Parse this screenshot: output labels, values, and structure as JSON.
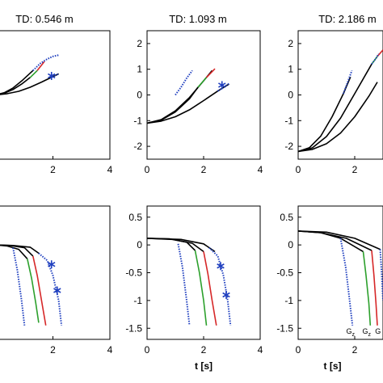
{
  "chart_data": [
    {
      "id": "top-1",
      "type": "line",
      "title": "TD: 0.546 m",
      "xlim": [
        0,
        4
      ],
      "ylim": [
        -2.5,
        2.5
      ],
      "xticks": [
        "2",
        "4"
      ],
      "yticks": [],
      "series": [
        {
          "color": "#000000",
          "style": "solid",
          "x": [
            0,
            0.4,
            0.8,
            1.2,
            1.6,
            2.2
          ],
          "y": [
            0,
            0.05,
            0.14,
            0.3,
            0.5,
            0.82
          ]
        },
        {
          "color": "#000000",
          "style": "solid",
          "x": [
            0,
            0.3,
            0.6,
            0.9,
            1.2
          ],
          "y": [
            0,
            0.07,
            0.21,
            0.42,
            0.68
          ]
        },
        {
          "color": "#000000",
          "style": "solid",
          "x": [
            0,
            0.3,
            0.6,
            0.9,
            1.3
          ],
          "y": [
            0,
            0.09,
            0.27,
            0.54,
            0.95
          ]
        },
        {
          "color": "#2ca02c",
          "style": "solid",
          "x": [
            1.2,
            1.45
          ],
          "y": [
            0.68,
            0.95
          ]
        },
        {
          "color": "#d62728",
          "style": "solid",
          "x": [
            1.45,
            1.7
          ],
          "y": [
            0.95,
            1.3
          ]
        },
        {
          "color": "#1f3fbf",
          "style": "dotted",
          "x": [
            1.3,
            1.55,
            1.8,
            2.0,
            2.2
          ],
          "y": [
            0.95,
            1.22,
            1.4,
            1.5,
            1.55
          ]
        },
        {
          "color": "#1f3fbf",
          "style": "dotted",
          "x": [
            1.9,
            2.0,
            2.2
          ],
          "y": [
            0.68,
            0.72,
            0.82
          ]
        }
      ],
      "markers": [
        {
          "x": 1.95,
          "y": 0.74
        }
      ]
    },
    {
      "id": "top-2",
      "type": "line",
      "title": "TD: 1.093 m",
      "xlim": [
        0,
        4
      ],
      "ylim": [
        -2.5,
        2.5
      ],
      "xticks": [
        "0",
        "2",
        "4"
      ],
      "yticks": [
        "-2",
        "-1",
        "0",
        "1",
        "2"
      ],
      "series": [
        {
          "color": "#000000",
          "style": "solid",
          "x": [
            0,
            0.5,
            1.0,
            1.5,
            2.0,
            2.5,
            2.9
          ],
          "y": [
            -1.1,
            -1.02,
            -0.85,
            -0.58,
            -0.22,
            0.15,
            0.42
          ]
        },
        {
          "color": "#000000",
          "style": "solid",
          "x": [
            0,
            0.5,
            1.0,
            1.5,
            1.8
          ],
          "y": [
            -1.1,
            -0.98,
            -0.66,
            -0.15,
            0.3
          ]
        },
        {
          "color": "#000000",
          "style": "solid",
          "x": [
            0,
            0.5,
            1.0,
            1.5,
            2.0,
            2.3
          ],
          "y": [
            -1.1,
            -0.96,
            -0.62,
            -0.1,
            0.55,
            0.95
          ]
        },
        {
          "color": "#2ca02c",
          "style": "solid",
          "x": [
            1.8,
            2.1
          ],
          "y": [
            0.3,
            0.68
          ]
        },
        {
          "color": "#d62728",
          "style": "solid",
          "x": [
            2.1,
            2.4
          ],
          "y": [
            0.68,
            1.02
          ]
        },
        {
          "color": "#1f3fbf",
          "style": "dotted",
          "x": [
            1.0,
            1.2,
            1.4,
            1.6
          ],
          "y": [
            0.0,
            0.3,
            0.65,
            0.95
          ]
        },
        {
          "color": "#1f3fbf",
          "style": "dotted",
          "x": [
            2.5,
            2.7,
            2.9
          ],
          "y": [
            0.15,
            0.3,
            0.44
          ]
        }
      ],
      "markers": [
        {
          "x": 2.65,
          "y": 0.38
        }
      ]
    },
    {
      "id": "top-3",
      "type": "line",
      "title": "TD: 2.186 m",
      "xlim": [
        0,
        3
      ],
      "ylim": [
        -2.5,
        2.5
      ],
      "xticks": [
        "0",
        "2"
      ],
      "yticks": [
        "-2",
        "-1",
        "0",
        "1",
        "2"
      ],
      "series": [
        {
          "color": "#000000",
          "style": "solid",
          "x": [
            0,
            0.5,
            1.0,
            1.5,
            2.0,
            2.5,
            2.8
          ],
          "y": [
            -2.2,
            -2.12,
            -1.9,
            -1.48,
            -0.85,
            -0.05,
            0.5
          ]
        },
        {
          "color": "#000000",
          "style": "solid",
          "x": [
            0,
            0.4,
            0.8,
            1.2,
            1.6,
            1.85
          ],
          "y": [
            -2.2,
            -2.05,
            -1.6,
            -0.85,
            0.05,
            0.7
          ]
        },
        {
          "color": "#000000",
          "style": "solid",
          "x": [
            0,
            0.5,
            1.0,
            1.5,
            2.0,
            2.6
          ],
          "y": [
            -2.2,
            -2.06,
            -1.62,
            -0.9,
            0.05,
            1.2
          ]
        },
        {
          "color": "#2ca02c",
          "style": "solid",
          "x": [
            2.6,
            2.8
          ],
          "y": [
            1.2,
            1.5
          ]
        },
        {
          "color": "#d62728",
          "style": "solid",
          "x": [
            2.8,
            3.0
          ],
          "y": [
            1.5,
            1.75
          ]
        },
        {
          "color": "#1f3fbf",
          "style": "dotted",
          "x": [
            1.6,
            1.75,
            1.9
          ],
          "y": [
            0.05,
            0.5,
            0.95
          ]
        },
        {
          "color": "#1f3fbf",
          "style": "dotted",
          "x": [
            2.6,
            2.75,
            2.85
          ],
          "y": [
            1.2,
            1.42,
            1.6
          ]
        }
      ],
      "markers": []
    },
    {
      "id": "bottom-1",
      "type": "line",
      "title": "",
      "xlim": [
        0,
        4
      ],
      "ylim": [
        -1.7,
        0.7
      ],
      "xticks": [
        "2",
        "4"
      ],
      "yticks": [],
      "series": [
        {
          "color": "#000000",
          "style": "solid",
          "x": [
            0,
            0.4,
            0.8,
            1.1
          ],
          "y": [
            0.0,
            -0.02,
            -0.08,
            -0.25
          ]
        },
        {
          "color": "#000000",
          "style": "solid",
          "x": [
            0,
            0.5,
            1.0,
            1.3
          ],
          "y": [
            0.0,
            -0.01,
            -0.05,
            -0.2
          ]
        },
        {
          "color": "#000000",
          "style": "solid",
          "x": [
            0,
            0.6,
            1.2,
            1.5
          ],
          "y": [
            0.0,
            -0.01,
            -0.04,
            -0.15
          ]
        },
        {
          "color": "#2ca02c",
          "style": "solid",
          "x": [
            1.1,
            1.25,
            1.4,
            1.5
          ],
          "y": [
            -0.25,
            -0.6,
            -1.05,
            -1.4
          ]
        },
        {
          "color": "#d62728",
          "style": "solid",
          "x": [
            1.3,
            1.45,
            1.6,
            1.75
          ],
          "y": [
            -0.2,
            -0.55,
            -1.0,
            -1.45
          ]
        },
        {
          "color": "#1f3fbf",
          "style": "dotted",
          "x": [
            0.6,
            0.75,
            0.9,
            1.0
          ],
          "y": [
            -0.05,
            -0.45,
            -1.0,
            -1.45
          ]
        },
        {
          "color": "#1f3fbf",
          "style": "dotted",
          "x": [
            1.5,
            1.8,
            2.0,
            2.2,
            2.3
          ],
          "y": [
            -0.15,
            -0.28,
            -0.55,
            -1.0,
            -1.45
          ]
        }
      ],
      "markers": [
        {
          "x": 1.95,
          "y": -0.35
        },
        {
          "x": 2.15,
          "y": -0.82
        }
      ]
    },
    {
      "id": "bottom-2",
      "type": "line",
      "title": "",
      "xlim": [
        0,
        4
      ],
      "ylim": [
        -1.7,
        0.7
      ],
      "xticks": [
        "0",
        "2",
        "4"
      ],
      "yticks": [
        "-1.5",
        "-1",
        "-0.5",
        "0",
        "0.5"
      ],
      "xlabel": "t [s]",
      "series": [
        {
          "color": "#000000",
          "style": "solid",
          "x": [
            0,
            0.8,
            1.4,
            1.7
          ],
          "y": [
            0.12,
            0.11,
            0.05,
            -0.1
          ]
        },
        {
          "color": "#000000",
          "style": "solid",
          "x": [
            0,
            0.9,
            1.6,
            2.0
          ],
          "y": [
            0.12,
            0.1,
            0.03,
            -0.12
          ]
        },
        {
          "color": "#000000",
          "style": "solid",
          "x": [
            0,
            1.2,
            2.0,
            2.4
          ],
          "y": [
            0.12,
            0.1,
            0.02,
            -0.12
          ]
        },
        {
          "color": "#2ca02c",
          "style": "solid",
          "x": [
            1.7,
            1.85,
            2.0,
            2.1
          ],
          "y": [
            -0.1,
            -0.5,
            -1.0,
            -1.45
          ]
        },
        {
          "color": "#d62728",
          "style": "solid",
          "x": [
            2.0,
            2.15,
            2.3,
            2.45
          ],
          "y": [
            -0.12,
            -0.52,
            -1.0,
            -1.45
          ]
        },
        {
          "color": "#1f3fbf",
          "style": "dotted",
          "x": [
            1.1,
            1.25,
            1.4,
            1.5
          ],
          "y": [
            0.02,
            -0.4,
            -1.0,
            -1.45
          ]
        },
        {
          "color": "#1f3fbf",
          "style": "dotted",
          "x": [
            2.2,
            2.5,
            2.7,
            2.85,
            2.95
          ],
          "y": [
            -0.05,
            -0.2,
            -0.55,
            -1.0,
            -1.45
          ]
        }
      ],
      "markers": [
        {
          "x": 2.6,
          "y": -0.38
        },
        {
          "x": 2.8,
          "y": -0.9
        }
      ]
    },
    {
      "id": "bottom-3",
      "type": "line",
      "title": "",
      "xlim": [
        0,
        3
      ],
      "ylim": [
        -1.7,
        0.7
      ],
      "xticks": [
        "0",
        "2"
      ],
      "yticks": [
        "-1.5",
        "-1",
        "-0.5",
        "0",
        "0.5"
      ],
      "xlabel": "t [s]",
      "series": [
        {
          "color": "#000000",
          "style": "solid",
          "x": [
            0,
            0.8,
            1.5,
            2.3
          ],
          "y": [
            0.25,
            0.22,
            0.12,
            -0.12
          ]
        },
        {
          "color": "#000000",
          "style": "solid",
          "x": [
            0,
            0.8,
            1.7,
            2.6
          ],
          "y": [
            0.25,
            0.22,
            0.12,
            -0.1
          ]
        },
        {
          "color": "#000000",
          "style": "solid",
          "x": [
            0,
            1.0,
            2.0,
            2.9
          ],
          "y": [
            0.25,
            0.23,
            0.12,
            -0.08
          ]
        },
        {
          "color": "#2ca02c",
          "style": "solid",
          "x": [
            2.3,
            2.4,
            2.5,
            2.55
          ],
          "y": [
            -0.12,
            -0.55,
            -1.05,
            -1.45
          ]
        },
        {
          "color": "#d62728",
          "style": "solid",
          "x": [
            2.6,
            2.68,
            2.75,
            2.8
          ],
          "y": [
            -0.1,
            -0.55,
            -1.05,
            -1.45
          ]
        },
        {
          "color": "#1f3fbf",
          "style": "dotted",
          "x": [
            1.5,
            1.68,
            1.82,
            1.92
          ],
          "y": [
            0.12,
            -0.4,
            -1.0,
            -1.45
          ]
        },
        {
          "color": "#1f3fbf",
          "style": "dotted",
          "x": [
            2.9,
            2.95,
            3.0
          ],
          "y": [
            -0.08,
            -0.5,
            -1.0
          ]
        }
      ],
      "markers": [],
      "annotations": [
        {
          "label": "G",
          "sub": "z",
          "x": 1.85,
          "y": -1.6
        },
        {
          "label": "G",
          "sub": "z",
          "x": 2.42,
          "y": -1.6
        },
        {
          "label": "G",
          "sub": "",
          "x": 2.82,
          "y": -1.6
        }
      ]
    }
  ]
}
